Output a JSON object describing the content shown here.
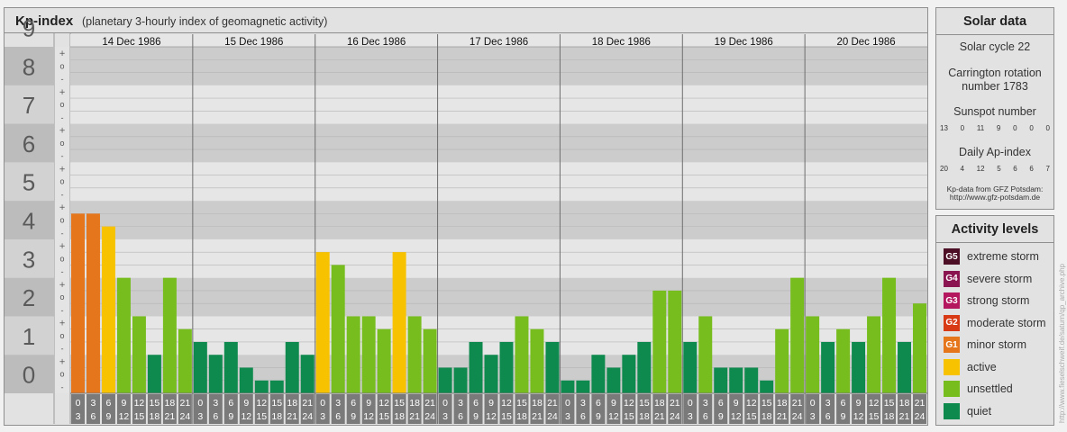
{
  "title": "Kp-index",
  "subtitle": "(planetary 3-hourly index of geomagnetic activity)",
  "chart_data": {
    "type": "bar",
    "ylim": [
      0,
      9
    ],
    "y_ticks": [
      "0",
      "1",
      "2",
      "3",
      "4",
      "5",
      "6",
      "7",
      "8",
      "9"
    ],
    "minor_y_ticks": [
      "+",
      "o",
      "-"
    ],
    "days": [
      "14 Dec 1986",
      "15 Dec 1986",
      "16 Dec 1986",
      "17 Dec 1986",
      "18 Dec 1986",
      "19 Dec 1986",
      "20 Dec 1986"
    ],
    "hour_start": [
      "0",
      "3",
      "6",
      "9",
      "12",
      "15",
      "18",
      "21"
    ],
    "hour_end": [
      "3",
      "6",
      "9",
      "12",
      "15",
      "18",
      "21",
      "24"
    ],
    "values": [
      [
        4.667,
        4.667,
        4.333,
        3.0,
        2.0,
        1.0,
        3.0,
        1.667
      ],
      [
        1.333,
        1.0,
        1.333,
        0.667,
        0.333,
        0.333,
        1.333,
        1.0
      ],
      [
        3.667,
        3.333,
        2.0,
        2.0,
        1.667,
        3.667,
        2.0,
        1.667
      ],
      [
        0.667,
        0.667,
        1.333,
        1.0,
        1.333,
        2.0,
        1.667,
        1.333
      ],
      [
        0.333,
        0.333,
        1.0,
        0.667,
        1.0,
        1.333,
        2.667,
        2.667
      ],
      [
        1.333,
        2.0,
        0.667,
        0.667,
        0.667,
        0.333,
        1.667,
        3.0
      ],
      [
        2.0,
        1.333,
        1.667,
        1.333,
        2.0,
        3.0,
        1.333,
        2.333
      ]
    ]
  },
  "colors": {
    "quiet": "#0f8a4e",
    "unsettled": "#76bd1d",
    "active": "#f7c200",
    "g1": "#e6761c",
    "g2": "#d83a16",
    "g3": "#b5175e",
    "g4": "#8a1450",
    "g5": "#4d0f25"
  },
  "solar": {
    "heading": "Solar data",
    "cycle": "Solar cycle 22",
    "carrington_line1": "Carrington rotation",
    "carrington_line2": "number 1783",
    "sunspot_label": "Sunspot number",
    "sunspot_values": [
      "13",
      "0",
      "11",
      "9",
      "0",
      "0",
      "0"
    ],
    "ap_label": "Daily Ap-index",
    "ap_values": [
      "20",
      "4",
      "12",
      "5",
      "6",
      "6",
      "7"
    ],
    "source_line1": "Kp-data from GFZ Potsdam:",
    "source_line2": "http://www.gfz-potsdam.de"
  },
  "activity": {
    "heading": "Activity levels",
    "levels": [
      {
        "badge": "G5",
        "label": "extreme storm",
        "color": "#4d0f25"
      },
      {
        "badge": "G4",
        "label": "severe storm",
        "color": "#8a1450"
      },
      {
        "badge": "G3",
        "label": "strong storm",
        "color": "#b5175e"
      },
      {
        "badge": "G2",
        "label": "moderate storm",
        "color": "#d83a16"
      },
      {
        "badge": "G1",
        "label": "minor storm",
        "color": "#e6761c"
      },
      {
        "badge": "",
        "label": "active",
        "color": "#f7c200"
      },
      {
        "badge": "",
        "label": "unsettled",
        "color": "#76bd1d"
      },
      {
        "badge": "",
        "label": "quiet",
        "color": "#0f8a4e"
      }
    ]
  },
  "watermark": "http://www.fieselschweif.de/saturn/qp_archive.php"
}
